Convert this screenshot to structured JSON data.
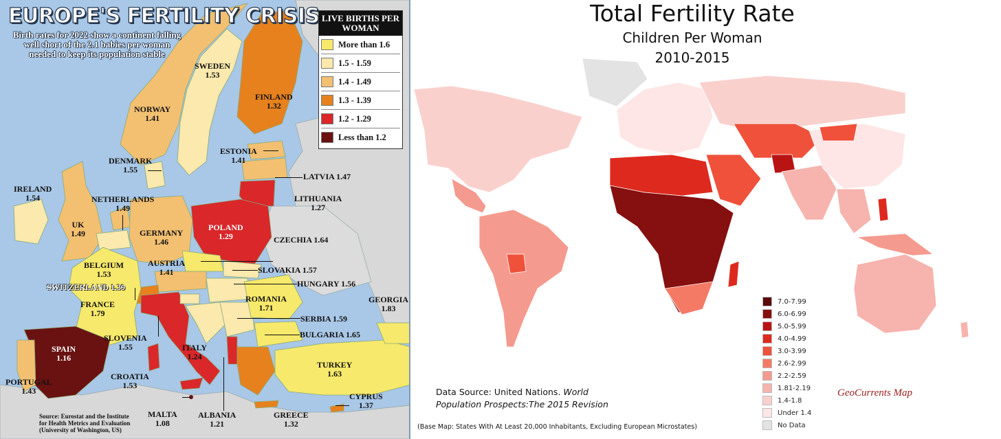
{
  "left": {
    "title": "EUROPE'S FERTILITY CRISIS",
    "subtitle": "Birth rates for 2022 show a continent falling well short of the 2.1 babies per woman needed to keep its population stable",
    "legend": {
      "heading": "LIVE BIRTHS PER WOMAN",
      "items": [
        {
          "label": "More than 1.6",
          "color": "#f7e96b"
        },
        {
          "label": "1.5 - 1.59",
          "color": "#fbe9ad"
        },
        {
          "label": "1.4 - 1.49",
          "color": "#f3c071"
        },
        {
          "label": "1.3 - 1.39",
          "color": "#e6811e"
        },
        {
          "label": "1.2 - 1.29",
          "color": "#d9272a"
        },
        {
          "label": "Less than 1.2",
          "color": "#6a1212"
        }
      ]
    },
    "countries": [
      {
        "name": "SWEDEN",
        "value": "1.53"
      },
      {
        "name": "FINLAND",
        "value": "1.32"
      },
      {
        "name": "NORWAY",
        "value": "1.41"
      },
      {
        "name": "ESTONIA",
        "value": "1.41"
      },
      {
        "name": "DENMARK",
        "value": "1.55"
      },
      {
        "name": "LATVIA",
        "value": "1.47"
      },
      {
        "name": "IRELAND",
        "value": "1.54"
      },
      {
        "name": "NETHERLANDS",
        "value": "1.49"
      },
      {
        "name": "LITHUANIA",
        "value": "1.27"
      },
      {
        "name": "UK",
        "value": "1.49"
      },
      {
        "name": "POLAND",
        "value": "1.29"
      },
      {
        "name": "GERMANY",
        "value": "1.46"
      },
      {
        "name": "CZECHIA",
        "value": "1.64"
      },
      {
        "name": "BELGIUM",
        "value": "1.53"
      },
      {
        "name": "AUSTRIA",
        "value": "1.41"
      },
      {
        "name": "SLOVAKIA",
        "value": "1.57"
      },
      {
        "name": "HUNGARY",
        "value": "1.56"
      },
      {
        "name": "SWITZERLAND",
        "value": "1.39"
      },
      {
        "name": "FRANCE",
        "value": "1.79"
      },
      {
        "name": "ROMANIA",
        "value": "1.71"
      },
      {
        "name": "GEORGIA",
        "value": "1.83"
      },
      {
        "name": "SERBIA",
        "value": "1.59"
      },
      {
        "name": "SLOVENIA",
        "value": "1.55"
      },
      {
        "name": "BULGARIA",
        "value": "1.65"
      },
      {
        "name": "SPAIN",
        "value": "1.16"
      },
      {
        "name": "ITALY",
        "value": "1.24"
      },
      {
        "name": "TURKEY",
        "value": "1.63"
      },
      {
        "name": "CROATIA",
        "value": "1.53"
      },
      {
        "name": "PORTUGAL",
        "value": "1.43"
      },
      {
        "name": "CYPRUS",
        "value": "1.37"
      },
      {
        "name": "MALTA",
        "value": "1.08"
      },
      {
        "name": "ALBANIA",
        "value": "1.21"
      },
      {
        "name": "GREECE",
        "value": "1.32"
      }
    ],
    "source": "Source: Eurostat and the Institute for Health Metrics and Evaluation (University of Washington, US)",
    "source_lines": [
      "Source: Eurostat and the Institute",
      "for Health Metrics and Evaluation",
      "(University of Washington, US)"
    ],
    "water_color": "#a9c7e6",
    "nonmember_color": "#d8d8d8"
  },
  "right": {
    "title": "Total Fertility Rate",
    "subtitle": "Children Per Woman",
    "period": "2010-2015",
    "legend": [
      {
        "label": "7.0-7.99",
        "color": "#5c0a0a"
      },
      {
        "label": "6.0-6.99",
        "color": "#860f0f"
      },
      {
        "label": "5.0-5.99",
        "color": "#b81414"
      },
      {
        "label": "4.0-4.99",
        "color": "#de2a1e"
      },
      {
        "label": "3.0-3.99",
        "color": "#f0513b"
      },
      {
        "label": "2.6-2.99",
        "color": "#f47a66"
      },
      {
        "label": "2.2-2.59",
        "color": "#f59a8e"
      },
      {
        "label": "1.81-2.19",
        "color": "#f7b3ad"
      },
      {
        "label": "1.4-1.8",
        "color": "#fad0cd"
      },
      {
        "label": "Under 1.4",
        "color": "#fde6e5"
      },
      {
        "label": "No Data",
        "color": "#e3e3e3"
      }
    ],
    "data_source_prefix": "Data Source: United Nations.",
    "data_source_work1": "World",
    "data_source_work2": "Population Prospects:The 2015 Revision",
    "credit": "GeoCurrents Map",
    "base_note": "(Base Map: States With At Least 20,000 Inhabitants, Excluding European Microstates)"
  }
}
